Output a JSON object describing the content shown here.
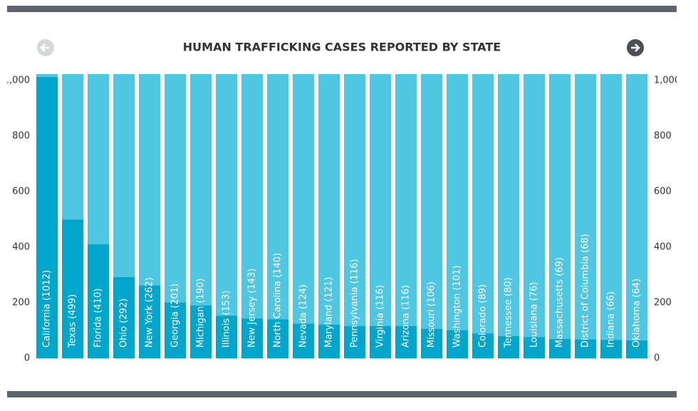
{
  "chart_data": {
    "type": "bar",
    "title": "HUMAN TRAFFICKING CASES REPORTED BY STATE",
    "categories": [
      "California (1012)",
      "Texas (499)",
      "Florida (410)",
      "Ohio (292)",
      "New York (262)",
      "Georgia (201)",
      "Michigan (190)",
      "Illinois (153)",
      "New Jersey (143)",
      "North Carolina (140)",
      "Nevada (124)",
      "Maryland (121)",
      "Pennsylvania (116)",
      "Virginia (116)",
      "Arizona (116)",
      "Missouri (106)",
      "Washington (101)",
      "Colorado (89)",
      "Tennessee (80)",
      "Louisiana (76)",
      "Massachusetts (69)",
      "District of Columbia (68)",
      "Indiana (66)",
      "Oklahoma (64)"
    ],
    "values": [
      1012,
      499,
      410,
      292,
      262,
      201,
      190,
      153,
      143,
      140,
      124,
      121,
      116,
      116,
      116,
      106,
      101,
      89,
      80,
      76,
      69,
      68,
      66,
      64
    ],
    "color": "#00a5cc",
    "track_color": "#4fc6e2",
    "ylim": [
      0,
      1000
    ],
    "yticks": [
      0,
      200,
      400,
      600,
      800,
      {
        "value": 1000,
        "label": "1,000"
      }
    ]
  }
}
